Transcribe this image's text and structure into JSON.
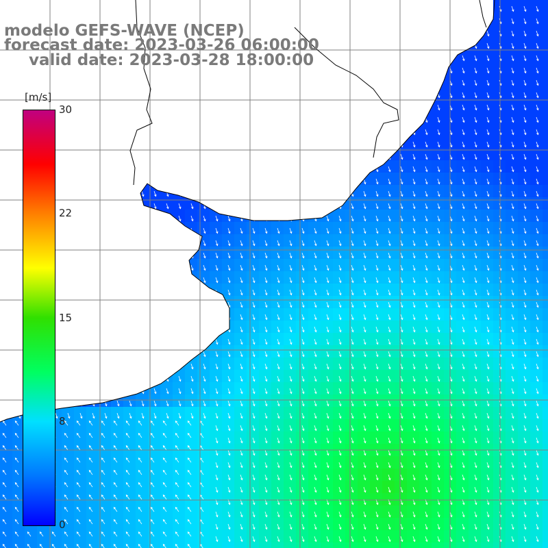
{
  "title": {
    "model": "modelo GEFS-WAVE (NCEP)",
    "forecast": "forecast date: 2023-03-26 06:00:00",
    "valid": "valid date: 2023-03-28 18:00:00"
  },
  "colorbar": {
    "unit": "[m/s]",
    "ticks": [
      "30",
      "22",
      "15",
      "8",
      "0"
    ],
    "tick_values": [
      30,
      22,
      15,
      8,
      0
    ],
    "min": 0,
    "max": 30,
    "colors": [
      "#0000ff",
      "#0078ff",
      "#00e0ff",
      "#00ff60",
      "#30e000",
      "#ffff00",
      "#ff8000",
      "#ff0000",
      "#c00080"
    ]
  },
  "map": {
    "variable": "wind speed and direction",
    "land_color": "#ffffff",
    "grid_color": "#7f7f7f",
    "coast_color": "#000000",
    "arrow_color": "#ffffff"
  }
}
